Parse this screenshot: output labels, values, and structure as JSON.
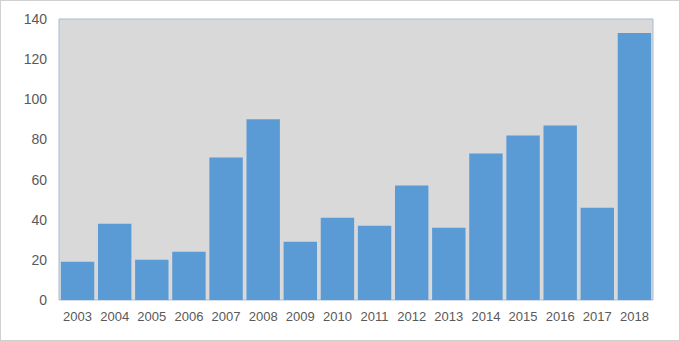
{
  "chart_data": {
    "type": "bar",
    "categories": [
      "2003",
      "2004",
      "2005",
      "2006",
      "2007",
      "2008",
      "2009",
      "2010",
      "2011",
      "2012",
      "2013",
      "2014",
      "2015",
      "2016",
      "2017",
      "2018"
    ],
    "values": [
      19,
      38,
      20,
      24,
      71,
      90,
      29,
      41,
      37,
      57,
      36,
      73,
      82,
      87,
      46,
      133
    ],
    "color": "#5b9bd5",
    "ylim": [
      0,
      140
    ],
    "yticks": [
      0,
      20,
      40,
      60,
      80,
      100,
      120,
      140
    ],
    "grid": false
  }
}
